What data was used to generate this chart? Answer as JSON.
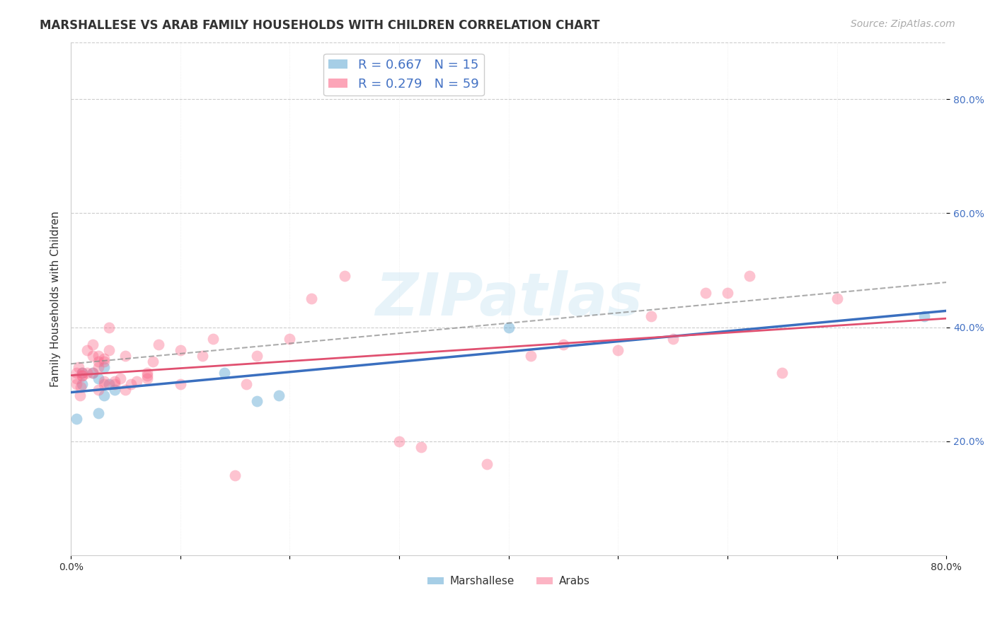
{
  "title": "MARSHALLESE VS ARAB FAMILY HOUSEHOLDS WITH CHILDREN CORRELATION CHART",
  "source": "Source: ZipAtlas.com",
  "ylabel": "Family Households with Children",
  "xlim": [
    0.0,
    0.8
  ],
  "ylim": [
    0.0,
    0.9
  ],
  "xticks": [
    0.0,
    0.1,
    0.2,
    0.3,
    0.4,
    0.5,
    0.6,
    0.7,
    0.8
  ],
  "xticklabels": [
    "0.0%",
    "",
    "",
    "",
    "",
    "",
    "",
    "",
    "80.0%"
  ],
  "yticks_right": [
    0.2,
    0.4,
    0.6,
    0.8
  ],
  "ytick_right_labels": [
    "20.0%",
    "40.0%",
    "60.0%",
    "80.0%"
  ],
  "watermark": "ZIPatlas",
  "legend_blue_r": "0.667",
  "legend_blue_n": "15",
  "legend_pink_r": "0.279",
  "legend_pink_n": "59",
  "blue_color": "#6baed6",
  "pink_color": "#fb6a8a",
  "marshallese_x": [
    0.005,
    0.01,
    0.01,
    0.02,
    0.025,
    0.03,
    0.025,
    0.03,
    0.035,
    0.04,
    0.14,
    0.17,
    0.19,
    0.4,
    0.78
  ],
  "marshallese_y": [
    0.24,
    0.3,
    0.32,
    0.32,
    0.31,
    0.33,
    0.25,
    0.28,
    0.3,
    0.29,
    0.32,
    0.27,
    0.28,
    0.4,
    0.42
  ],
  "arabs_x": [
    0.005,
    0.005,
    0.005,
    0.007,
    0.008,
    0.009,
    0.01,
    0.01,
    0.01,
    0.015,
    0.015,
    0.02,
    0.02,
    0.02,
    0.025,
    0.025,
    0.025,
    0.025,
    0.03,
    0.03,
    0.03,
    0.03,
    0.035,
    0.035,
    0.04,
    0.04,
    0.045,
    0.05,
    0.05,
    0.055,
    0.06,
    0.07,
    0.07,
    0.07,
    0.075,
    0.08,
    0.1,
    0.1,
    0.12,
    0.13,
    0.15,
    0.16,
    0.17,
    0.2,
    0.22,
    0.25,
    0.3,
    0.32,
    0.38,
    0.42,
    0.45,
    0.5,
    0.53,
    0.55,
    0.58,
    0.6,
    0.62,
    0.65,
    0.7
  ],
  "arabs_y": [
    0.3,
    0.31,
    0.32,
    0.33,
    0.28,
    0.295,
    0.315,
    0.315,
    0.32,
    0.32,
    0.36,
    0.32,
    0.35,
    0.37,
    0.29,
    0.33,
    0.34,
    0.35,
    0.3,
    0.305,
    0.34,
    0.345,
    0.36,
    0.4,
    0.3,
    0.305,
    0.31,
    0.29,
    0.35,
    0.3,
    0.305,
    0.31,
    0.315,
    0.32,
    0.34,
    0.37,
    0.3,
    0.36,
    0.35,
    0.38,
    0.14,
    0.3,
    0.35,
    0.38,
    0.45,
    0.49,
    0.2,
    0.19,
    0.16,
    0.35,
    0.37,
    0.36,
    0.42,
    0.38,
    0.46,
    0.46,
    0.49,
    0.32,
    0.45
  ],
  "title_fontsize": 12,
  "label_fontsize": 11,
  "tick_fontsize": 10,
  "source_fontsize": 10,
  "grid_color": "#cccccc",
  "background_color": "#ffffff"
}
